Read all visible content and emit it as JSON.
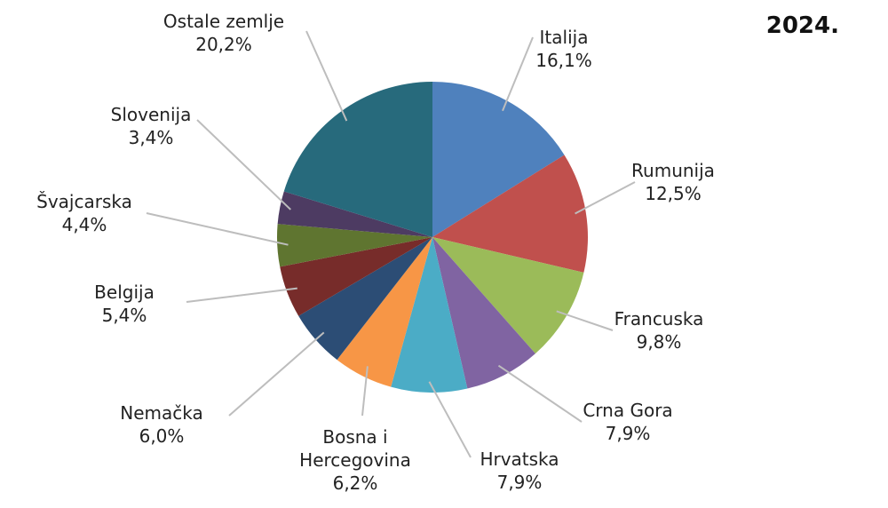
{
  "chart_data": {
    "type": "pie",
    "title": "2024.",
    "categories": [
      "Italija",
      "Rumunija",
      "Francuska",
      "Crna Gora",
      "Hrvatska",
      "Bosna i Hercegovina",
      "Nemačka",
      "Belgija",
      "Švajcarska",
      "Slovenija",
      "Ostale zemlje"
    ],
    "values": [
      16.1,
      12.5,
      9.8,
      7.9,
      7.9,
      6.2,
      6.0,
      5.4,
      4.4,
      3.4,
      20.2
    ],
    "value_labels": [
      "16,1%",
      "12,5%",
      "9,8%",
      "7,9%",
      "7,9%",
      "6,2%",
      "6,0%",
      "5,4%",
      "4,4%",
      "3,4%",
      "20,2%"
    ],
    "colors": [
      "#4f81bd",
      "#c0504d",
      "#9bbb59",
      "#8064a2",
      "#4bacc6",
      "#f79646",
      "#2c4d75",
      "#772c2a",
      "#5f7530",
      "#4d3b62",
      "#276a7c"
    ]
  }
}
